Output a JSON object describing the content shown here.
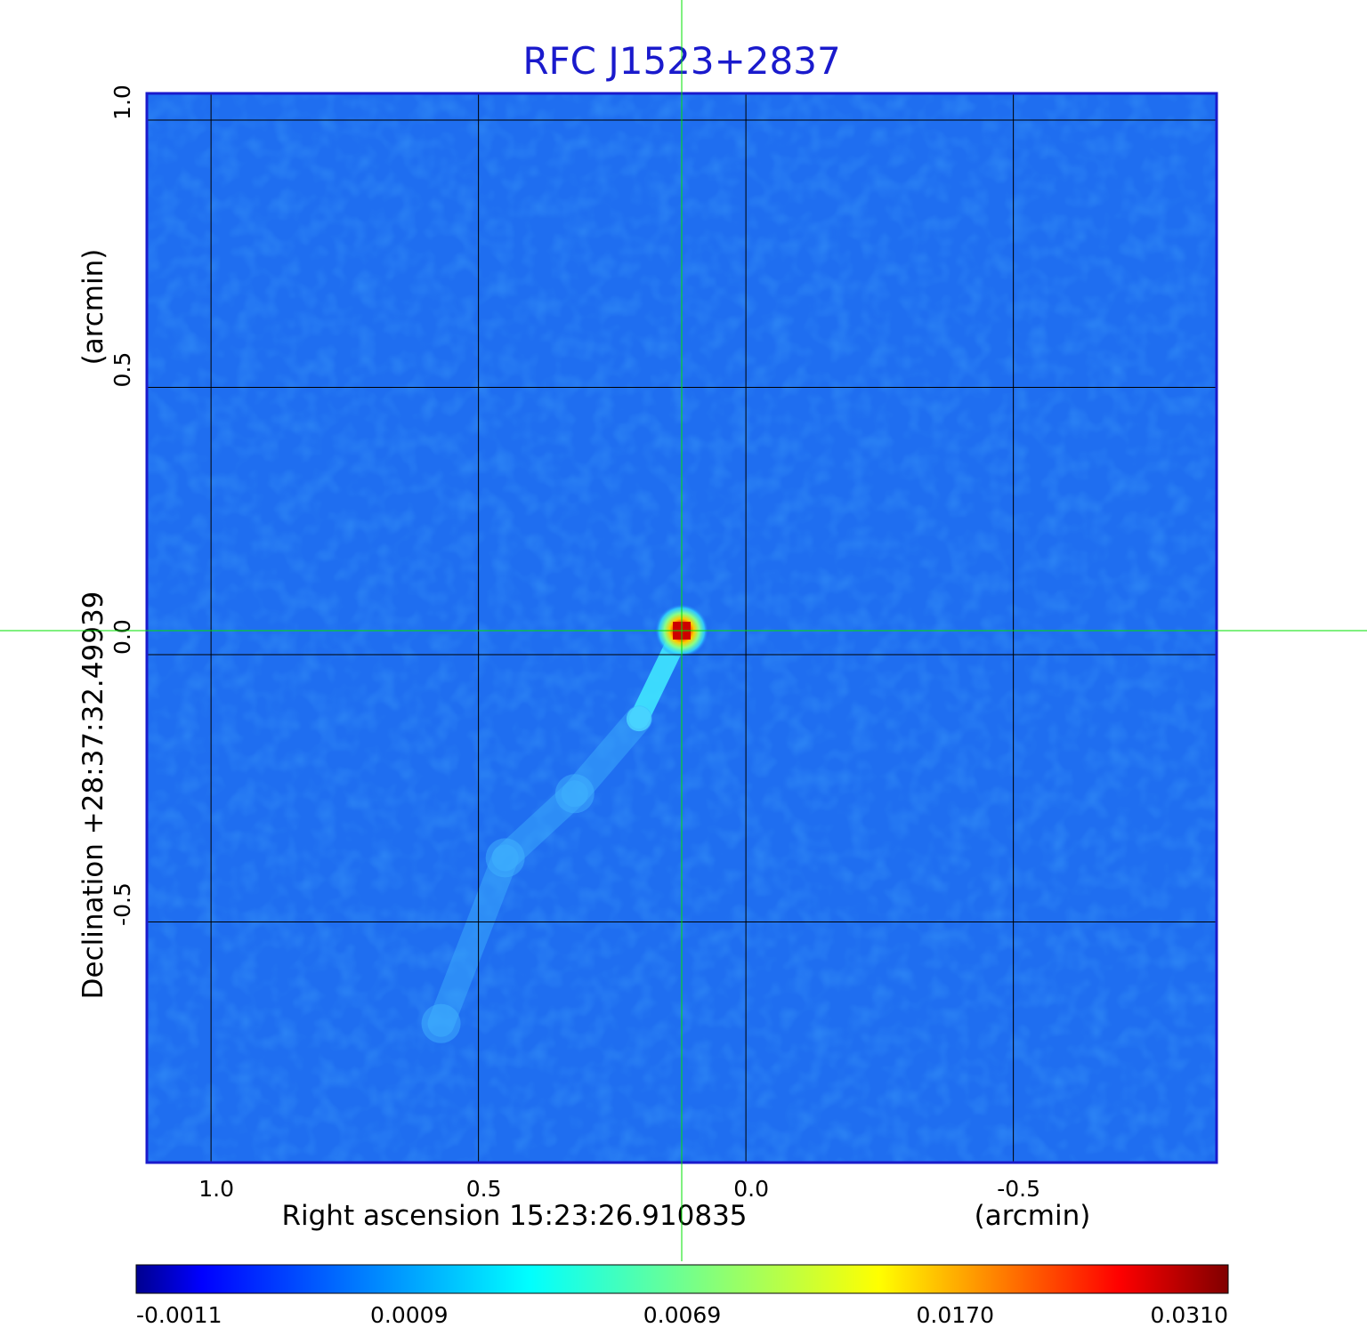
{
  "chart_data": {
    "type": "heatmap",
    "title": "RFC J1523+2837",
    "xlabel": "Right ascension  15:23:26.910835",
    "xunit": "(arcmin)",
    "ylabel": "Declination  +28:37:32.49939",
    "yunit": "(arcmin)",
    "xlim": [
      1.12,
      -0.88
    ],
    "ylim": [
      -0.95,
      1.05
    ],
    "x_ticks": [
      {
        "value": 1.0,
        "label": "1.0"
      },
      {
        "value": 0.5,
        "label": "0.5"
      },
      {
        "value": 0.0,
        "label": "0.0"
      },
      {
        "value": -0.5,
        "label": "-0.5"
      }
    ],
    "y_ticks": [
      {
        "value": 1.0,
        "label": "1.0"
      },
      {
        "value": 0.5,
        "label": "0.5"
      },
      {
        "value": 0.0,
        "label": "0.0"
      },
      {
        "value": -0.5,
        "label": "-0.5"
      }
    ],
    "grid": true,
    "crosshair": {
      "x": 0.12,
      "y": 0.045
    },
    "source": {
      "x": 0.12,
      "y": 0.045,
      "peak": 0.031
    },
    "jet": [
      {
        "x": 0.2,
        "y": -0.12,
        "value": 0.0032
      },
      {
        "x": 0.32,
        "y": -0.26,
        "value": 0.0016
      },
      {
        "x": 0.45,
        "y": -0.38,
        "value": 0.0012
      },
      {
        "x": 0.57,
        "y": -0.69,
        "value": 0.001
      }
    ],
    "colorbar": {
      "ticks": [
        "-0.0011",
        "0.0009",
        "0.0069",
        "0.0170",
        "0.0310"
      ],
      "colormap": "jet",
      "colors": [
        "#00008f",
        "#0000ff",
        "#00ffff",
        "#ffff00",
        "#ff0000",
        "#800000"
      ]
    },
    "colors": {
      "title": "#1a1acc",
      "frame": "#1a1acc",
      "background": "#1f6ef0",
      "grid": "#000000",
      "crosshair": "#00e000"
    }
  }
}
